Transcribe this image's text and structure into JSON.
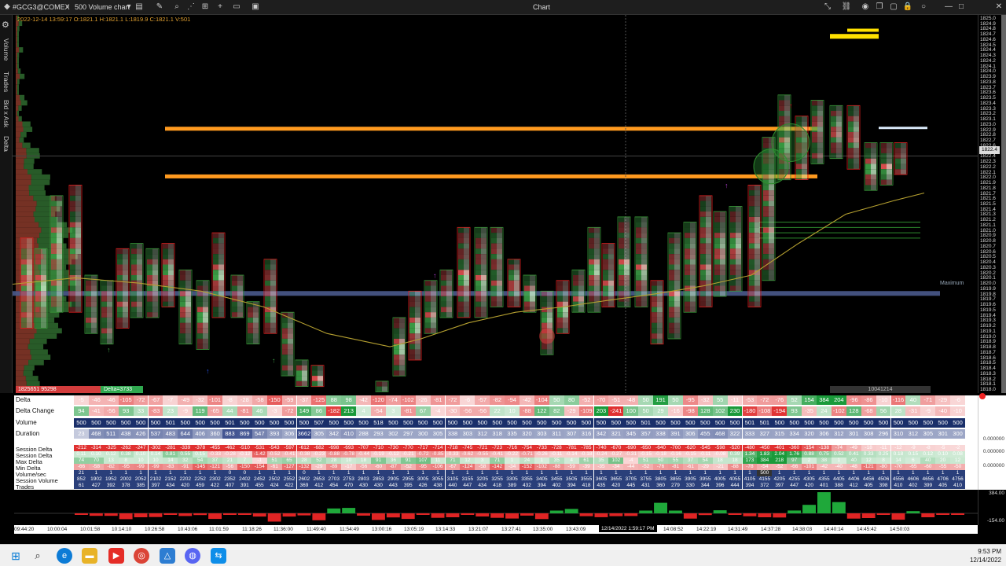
{
  "titlebar": {
    "symbol": "#GCG3@COMEX",
    "chart_type": "500 Volume chart",
    "window_title": "Chart"
  },
  "ohlc": "2022-12-14 13:59:17 O:1821.1 H:1821.1 L:1819.9 C:1821.1 V:501",
  "sidebar": {
    "labels": [
      "Volume",
      "Trades",
      "Bid x Ask",
      "Delta"
    ]
  },
  "chart": {
    "cum_delta": "1825651 95298",
    "session_delta": "Delta=3733",
    "total_volume": "10041214",
    "max_label": "Maximum",
    "current_price": "1822.4",
    "price_ticks": [
      "1825.0",
      "1824.9",
      "1824.8",
      "1824.7",
      "1824.6",
      "1824.5",
      "1824.4",
      "1824.3",
      "1824.2",
      "1824.1",
      "1824.0",
      "1823.9",
      "1823.8",
      "1823.7",
      "1823.6",
      "1823.5",
      "1823.4",
      "1823.3",
      "1823.2",
      "1823.1",
      "1823.0",
      "1822.9",
      "1822.8",
      "1822.7",
      "1822.6",
      "1822.5",
      "1822.4",
      "1822.3",
      "1822.2",
      "1822.1",
      "1822.0",
      "1821.9",
      "1821.8",
      "1821.7",
      "1821.6",
      "1821.5",
      "1821.4",
      "1821.3",
      "1821.2",
      "1821.1",
      "1821.0",
      "1820.9",
      "1820.8",
      "1820.7",
      "1820.6",
      "1820.5",
      "1820.4",
      "1820.3",
      "1820.2",
      "1820.1",
      "1820.0",
      "1819.9",
      "1819.8",
      "1819.7",
      "1819.6",
      "1819.5",
      "1819.4",
      "1819.3",
      "1819.2",
      "1819.1",
      "1819.0",
      "1818.9",
      "1818.8",
      "1818.7",
      "1818.6",
      "1818.5",
      "1818.4",
      "1818.3",
      "1818.2",
      "1818.1",
      "1818.0"
    ],
    "colors": {
      "bid": "#e05050",
      "ask": "#3fa84a",
      "poc": "#ff9a1f",
      "vwap": "#b5a030",
      "value_area": "#4a5a8c"
    }
  },
  "stats": {
    "row_labels": [
      "Delta",
      "Delta Change",
      "Volume",
      "Duration",
      "Session Delta",
      "Session Delta",
      "Max Delta",
      "Min Delta",
      "Volume/sec",
      "Session Volume",
      "Trades"
    ],
    "delta": [
      "-5",
      "-46",
      "-46",
      "-105",
      "-72",
      "-67",
      "-7",
      "-49",
      "-32",
      "-101",
      "-8",
      "-28",
      "-58",
      "-150",
      "-59",
      "-37",
      "-125",
      "88",
      "98",
      "-42",
      "-120",
      "-74",
      "-102",
      "-26",
      "-81",
      "-72",
      "-6",
      "-57",
      "-82",
      "-94",
      "-42",
      "-104",
      "50",
      "80",
      "-52",
      "-70",
      "-51",
      "-48",
      "50",
      "191",
      "50",
      "-95",
      "-32",
      "55",
      "-11",
      "-53",
      "-72",
      "-76",
      "52",
      "154",
      "384",
      "204",
      "-96",
      "-86",
      "-10",
      "-116",
      "40",
      "-71",
      "-29",
      "-6"
    ],
    "delta_change": [
      "94",
      "-41",
      "-56",
      "93",
      "33",
      "-83",
      "23",
      "-9",
      "119",
      "-65",
      "44",
      "-81",
      "46",
      "-3",
      "-72",
      "149",
      "86",
      "-182",
      "213",
      "4",
      "-54",
      "3",
      "-81",
      "67",
      "-4",
      "-30",
      "-56",
      "-56",
      "22",
      "10",
      "-88",
      "122",
      "82",
      "-29",
      "-109",
      "203",
      "-241",
      "100",
      "50",
      "29",
      "-16",
      "-98",
      "128",
      "102",
      "230",
      "-180",
      "-108",
      "-194",
      "93",
      "-35",
      "24",
      "-102",
      "128",
      "-68",
      "56",
      "28",
      "-31",
      "-9",
      "-40",
      "-10"
    ],
    "volume": [
      "500",
      "500",
      "500",
      "500",
      "500",
      "500",
      "501",
      "500",
      "500",
      "500",
      "501",
      "500",
      "500",
      "500",
      "500",
      "500",
      "507",
      "500",
      "500",
      "500",
      "518",
      "500",
      "500",
      "500",
      "500",
      "500",
      "500",
      "500",
      "500",
      "500",
      "500",
      "500",
      "500",
      "500",
      "500",
      "500",
      "500",
      "500",
      "501",
      "500",
      "500",
      "500",
      "500",
      "500",
      "500",
      "501",
      "501",
      "500",
      "500",
      "500",
      "500",
      "500",
      "500",
      "500",
      "500",
      "500",
      "500",
      "500",
      "500",
      "500"
    ],
    "duration": [
      "23",
      "468",
      "511",
      "438",
      "426",
      "537",
      "483",
      "644",
      "406",
      "360",
      "883",
      "869",
      "547",
      "393",
      "306",
      "3662",
      "305",
      "342",
      "410",
      "288",
      "293",
      "302",
      "297",
      "300",
      "305",
      "338",
      "303",
      "312",
      "318",
      "335",
      "320",
      "303",
      "311",
      "307",
      "316",
      "342",
      "321",
      "345",
      "357",
      "338",
      "391",
      "306",
      "455",
      "468",
      "322",
      "333",
      "327",
      "315",
      "334",
      "320",
      "306",
      "312",
      "301",
      "308",
      "296",
      "310",
      "312",
      "305",
      "301",
      "300"
    ],
    "session_delta": [
      "-212",
      "-314",
      "-325",
      "-262",
      "-247",
      "-302",
      "-281",
      "-339",
      "-378",
      "-455",
      "-462",
      "-510",
      "-531",
      "-543",
      "-597",
      "-612",
      "-682",
      "-698",
      "-693",
      "-707",
      "-710",
      "-730",
      "-770",
      "-717",
      "-714",
      "-718",
      "-745",
      "-721",
      "-723",
      "-716",
      "-754",
      "-733",
      "-728",
      "-781",
      "-785",
      "-740",
      "-670",
      "-690",
      "-650",
      "-640",
      "-700",
      "-620",
      "-545",
      "-598",
      "-520",
      "-480",
      "-450",
      "-401",
      "-360",
      "-154",
      "-138",
      "-74",
      "-49",
      "-18",
      "-11",
      "-12",
      "-9",
      "-8",
      "-5",
      "-2"
    ],
    "session_delta2": [
      "0.11",
      "0.10",
      "0.12",
      "0.38",
      "0.10",
      "0.14",
      "0.81",
      "0.55",
      "0.15",
      "-0.33",
      "-0.28",
      "-0.12",
      "-1.42",
      "-0.52",
      "-0.41",
      "-0.38",
      "-0.23",
      "-0.88",
      "-0.78",
      "-0.44",
      "-0.19",
      "-0.12",
      "-0.21",
      "-0.72",
      "-0.85",
      "-0.33",
      "-0.62",
      "-0.55",
      "-0.41",
      "-0.22",
      "-0.71",
      "-0.26",
      "-0.11",
      "-0.14",
      "-0.18",
      "-0.24",
      "-0.27",
      "-0.31",
      "-0.15",
      "-0.18",
      "-0.16",
      "-0.15",
      "-0.11",
      "-0.08",
      "0.39",
      "1.34",
      "1.83",
      "2.04",
      "1.76",
      "0.88",
      "0.75",
      "0.52",
      "0.41",
      "0.33",
      "0.25",
      "0.18",
      "0.15",
      "0.12",
      "0.10",
      "0.08"
    ],
    "max_delta": [
      "74",
      "70",
      "13",
      "8",
      "10",
      "10",
      "14",
      "32",
      "54",
      "37",
      "21",
      "7",
      "-1",
      "51",
      "65",
      "28",
      "52",
      "28",
      "10",
      "18",
      "91",
      "36",
      "91",
      "107",
      "11",
      "71",
      "12",
      "3",
      "71",
      "1",
      "24",
      "1",
      "35",
      "4",
      "61",
      "35",
      "102",
      "-4",
      "51",
      "50",
      "55",
      "37",
      "54",
      "18",
      "18",
      "173",
      "384",
      "218",
      "97",
      "2",
      "38",
      "1",
      "40",
      "12",
      "8",
      "14",
      "6",
      "40",
      "20",
      "12"
    ],
    "min_delta": [
      "-66",
      "-58",
      "-82",
      "-95",
      "-99",
      "-99",
      "-83",
      "-91",
      "-145",
      "-121",
      "-56",
      "-150",
      "-154",
      "-61",
      "-127",
      "-132",
      "-29",
      "-89",
      "-17",
      "-56",
      "-60",
      "-87",
      "-52",
      "-95",
      "-106",
      "-67",
      "-124",
      "-58",
      "-142",
      "-34",
      "-152",
      "-102",
      "-88",
      "-59",
      "-39",
      "-35",
      "-34",
      "-44",
      "-52",
      "-76",
      "-81",
      "-61",
      "-29",
      "-21",
      "-88",
      "-78",
      "-54",
      "-52",
      "-66",
      "-101",
      "-42",
      "-40",
      "-48",
      "-121",
      "-80",
      "-70",
      "-65",
      "-60",
      "-55",
      "-50"
    ],
    "volume_sec": [
      "21",
      "1",
      "1",
      "1",
      "1",
      "1",
      "1",
      "1",
      "1",
      "1",
      "0",
      "0",
      "1",
      "1",
      "1",
      "0",
      "1",
      "1",
      "1",
      "1",
      "1",
      "1",
      "1",
      "1",
      "1",
      "1",
      "1",
      "1",
      "1",
      "1",
      "1",
      "1",
      "1",
      "1",
      "1",
      "1",
      "1",
      "1",
      "1",
      "1",
      "1",
      "1",
      "1",
      "1",
      "1",
      "1",
      "500",
      "1",
      "1",
      "1",
      "1",
      "1",
      "1",
      "1",
      "1",
      "1",
      "1",
      "1",
      "1",
      "1"
    ],
    "session_volume": [
      "852",
      "1902",
      "1952",
      "2002",
      "2052",
      "2102",
      "2152",
      "2202",
      "2252",
      "2302",
      "2352",
      "2402",
      "2452",
      "2502",
      "2552",
      "2602",
      "2653",
      "2703",
      "2753",
      "2803",
      "2853",
      "2905",
      "2955",
      "3005",
      "3055",
      "3105",
      "3155",
      "3205",
      "3255",
      "3305",
      "3355",
      "3405",
      "3455",
      "3505",
      "3555",
      "3605",
      "3655",
      "3705",
      "3755",
      "3805",
      "3855",
      "3905",
      "3955",
      "4005",
      "4055",
      "4105",
      "4155",
      "4205",
      "4255",
      "4305",
      "4355",
      "4405",
      "4406",
      "4456",
      "4506",
      "4556",
      "4606",
      "4656",
      "4706",
      "4756"
    ],
    "trades": [
      "61",
      "427",
      "392",
      "378",
      "385",
      "397",
      "434",
      "420",
      "459",
      "422",
      "407",
      "391",
      "455",
      "424",
      "422",
      "369",
      "412",
      "454",
      "470",
      "430",
      "430",
      "443",
      "395",
      "426",
      "438",
      "440",
      "447",
      "434",
      "418",
      "389",
      "432",
      "394",
      "402",
      "394",
      "418",
      "435",
      "420",
      "445",
      "431",
      "360",
      "279",
      "330",
      "344",
      "396",
      "444",
      "394",
      "372",
      "397",
      "447",
      "420",
      "401",
      "388",
      "412",
      "405",
      "398",
      "410",
      "402",
      "399",
      "405",
      "410"
    ],
    "right_axis": [
      "0.000000",
      "0.000000",
      "0.000000"
    ],
    "row_colors": {
      "pos_strong": "#1a9a3a",
      "neg_strong": "#e03030"
    }
  },
  "hist": {
    "values": [
      -5,
      -46,
      -46,
      -105,
      -72,
      -67,
      -7,
      -49,
      -32,
      -101,
      -8,
      -28,
      -58,
      -150,
      -59,
      -37,
      -125,
      88,
      98,
      -42,
      -120,
      -74,
      -102,
      -26,
      -81,
      -72,
      -6,
      -57,
      -82,
      -94,
      -42,
      -104,
      50,
      80,
      -52,
      -70,
      -51,
      -48,
      50,
      191,
      50,
      -95,
      -32,
      55,
      -11,
      -53,
      -72,
      -76,
      52,
      154,
      384,
      204,
      -96,
      -86,
      -10,
      -116,
      40,
      -71,
      -29,
      -6
    ],
    "axis_top": "384.00",
    "axis_bottom": "-154.00"
  },
  "time_axis": {
    "labels": [
      "09:44:20",
      "10:00:04",
      "10:01:58",
      "10:14:10",
      "10:26:58",
      "10:43:06",
      "11:01:59",
      "11:18:26",
      "11:36:00",
      "11:49:40",
      "11:54:49",
      "13:00:16",
      "13:05:19",
      "13:14:33",
      "13:21:07",
      "13:27:41",
      "13:35:00",
      "13:43:09",
      "14:08:52",
      "14:22:19",
      "14:31:49",
      "14:37:28",
      "14:38:03",
      "14:40:14",
      "14:45:42",
      "14:50:03"
    ],
    "current": "12/14/2022 1:59:17 PM"
  },
  "taskbar": {
    "icons": [
      "windows-start",
      "search",
      "edge",
      "file-explorer",
      "youtube",
      "chrome",
      "krita",
      "discord",
      "teamviewer"
    ],
    "time": "9:53 PM",
    "date": "12/14/2022"
  }
}
